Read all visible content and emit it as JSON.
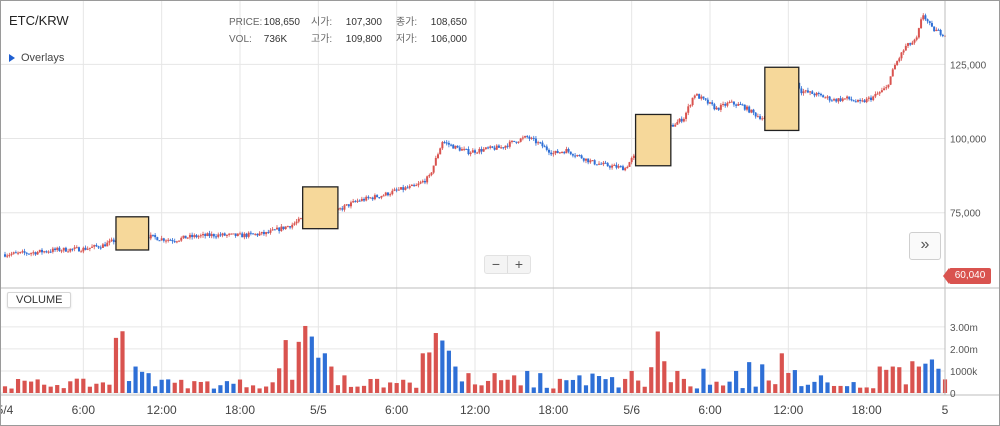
{
  "symbol": "ETC/KRW",
  "overlays_label": "Overlays",
  "info": {
    "price_label": "PRICE:",
    "price": "108,650",
    "vol_label": "VOL:",
    "vol": "736K",
    "open_label": "시가:",
    "open": "107,300",
    "high_label": "고가:",
    "high": "109,800",
    "close_label": "종가:",
    "close": "108,650",
    "low_label": "저가:",
    "low": "106,000"
  },
  "volume_label": "VOLUME",
  "current_price_tag": "60,040",
  "zoom": {
    "minus": "−",
    "plus": "+"
  },
  "next_label": "»",
  "colors": {
    "up": "#d9534f",
    "down": "#2e6fd6",
    "highlight_fill": "#f6d89a",
    "highlight_border": "#222222",
    "grid": "#e6e6e6"
  },
  "chart_data": [
    {
      "type": "candlestick",
      "title": "",
      "y_ticks": [
        "75,000",
        "100,000",
        "125,000"
      ],
      "ylim": [
        52000,
        145000
      ],
      "x_ticks": [
        "5/4",
        "6:00",
        "12:00",
        "18:00",
        "5/5",
        "6:00",
        "12:00",
        "18:00",
        "5/6",
        "6:00",
        "12:00",
        "18:00",
        "5"
      ],
      "xlim_hours": [
        0,
        72
      ],
      "series": [
        {
          "values": [
            [
              0,
              61000
            ],
            [
              2,
              61500
            ],
            [
              4,
              62500
            ],
            [
              6,
              62800
            ],
            [
              7.5,
              64000
            ],
            [
              8.6,
              66000
            ],
            [
              9.2,
              69000
            ],
            [
              9.8,
              68000
            ],
            [
              10.8,
              67200
            ],
            [
              12,
              66200
            ],
            [
              13,
              65800
            ],
            [
              14,
              66800
            ],
            [
              16,
              67500
            ],
            [
              18,
              67300
            ],
            [
              20,
              68000
            ],
            [
              21,
              69500
            ],
            [
              22,
              71000
            ],
            [
              22.8,
              73000
            ],
            [
              23.3,
              79000
            ],
            [
              23.8,
              76000
            ],
            [
              24.8,
              74000
            ],
            [
              26,
              77000
            ],
            [
              27,
              79000
            ],
            [
              28,
              80000
            ],
            [
              29,
              81000
            ],
            [
              30,
              82500
            ],
            [
              31.5,
              84000
            ],
            [
              32.5,
              87000
            ],
            [
              33,
              93000
            ],
            [
              33.5,
              99000
            ],
            [
              34.5,
              97000
            ],
            [
              35.5,
              95500
            ],
            [
              37,
              96500
            ],
            [
              38,
              97000
            ],
            [
              39,
              99000
            ],
            [
              40,
              100500
            ],
            [
              41,
              98000
            ],
            [
              42,
              95000
            ],
            [
              43,
              96000
            ],
            [
              44,
              94000
            ],
            [
              45,
              92000
            ],
            [
              46,
              91000
            ],
            [
              47.5,
              90000
            ],
            [
              48,
              93000
            ],
            [
              49,
              97000
            ],
            [
              50,
              101000
            ],
            [
              51,
              104000
            ],
            [
              52,
              107000
            ],
            [
              52.8,
              115000
            ],
            [
              53.5,
              113000
            ],
            [
              54.5,
              110000
            ],
            [
              55.5,
              112000
            ],
            [
              56.5,
              111000
            ],
            [
              57.5,
              108000
            ],
            [
              58.5,
              106000
            ],
            [
              59.5,
              110000
            ],
            [
              60,
              113000
            ],
            [
              60.5,
              120000
            ],
            [
              61,
              116000
            ],
            [
              62,
              115000
            ],
            [
              63.5,
              113000
            ],
            [
              64.5,
              113500
            ],
            [
              65.5,
              112000
            ],
            [
              66.5,
              114000
            ],
            [
              67.5,
              117000
            ],
            [
              68.2,
              125000
            ],
            [
              69,
              131000
            ],
            [
              69.8,
              133000
            ],
            [
              70.3,
              142000
            ],
            [
              71,
              137000
            ],
            [
              72,
              135000
            ]
          ]
        }
      ],
      "highlights_hours": [
        [
          8.5,
          11
        ],
        [
          22.8,
          25.5
        ],
        [
          48.3,
          51
        ],
        [
          58.2,
          60.8
        ]
      ]
    },
    {
      "type": "bar",
      "title": "",
      "y_ticks": [
        "0",
        "1000k",
        "2.00m",
        "3.00m"
      ],
      "ylim": [
        0,
        3.9
      ],
      "bars_per_hour": 2,
      "spikes": [
        [
          7.3,
          0.6
        ],
        [
          8.5,
          2.5
        ],
        [
          9.2,
          3.5
        ],
        [
          9.8,
          1.5
        ],
        [
          10.3,
          1.2
        ],
        [
          11,
          0.9
        ],
        [
          12,
          0.6
        ],
        [
          20.8,
          1.4
        ],
        [
          21.5,
          2.4
        ],
        [
          22.3,
          2.9
        ],
        [
          22.8,
          3.8
        ],
        [
          23.3,
          3.2
        ],
        [
          23.8,
          2.0
        ],
        [
          24.5,
          1.8
        ],
        [
          25,
          1.2
        ],
        [
          26,
          0.8
        ],
        [
          30.5,
          0.6
        ],
        [
          32,
          1.8
        ],
        [
          32.7,
          2.3
        ],
        [
          33.2,
          3.4
        ],
        [
          33.8,
          2.4
        ],
        [
          34.3,
          1.5
        ],
        [
          35.5,
          0.9
        ],
        [
          37.5,
          0.9
        ],
        [
          39,
          0.8
        ],
        [
          40,
          1.0
        ],
        [
          41,
          0.9
        ],
        [
          44,
          0.8
        ],
        [
          45.2,
          1.1
        ],
        [
          46.3,
          0.9
        ],
        [
          48,
          1.0
        ],
        [
          49.6,
          1.3
        ],
        [
          50.1,
          3.1
        ],
        [
          50.6,
          1.6
        ],
        [
          51.5,
          1.0
        ],
        [
          53.5,
          1.1
        ],
        [
          56,
          1.0
        ],
        [
          57,
          1.4
        ],
        [
          58,
          1.3
        ],
        [
          59.4,
          2.0
        ],
        [
          60.3,
          1.3
        ],
        [
          62.5,
          0.8
        ],
        [
          67.2,
          1.5
        ],
        [
          67.8,
          1.5
        ],
        [
          68.4,
          1.3
        ],
        [
          69.6,
          1.6
        ],
        [
          70.2,
          1.5
        ],
        [
          70.8,
          1.9
        ],
        [
          71.5,
          1.1
        ]
      ]
    }
  ]
}
